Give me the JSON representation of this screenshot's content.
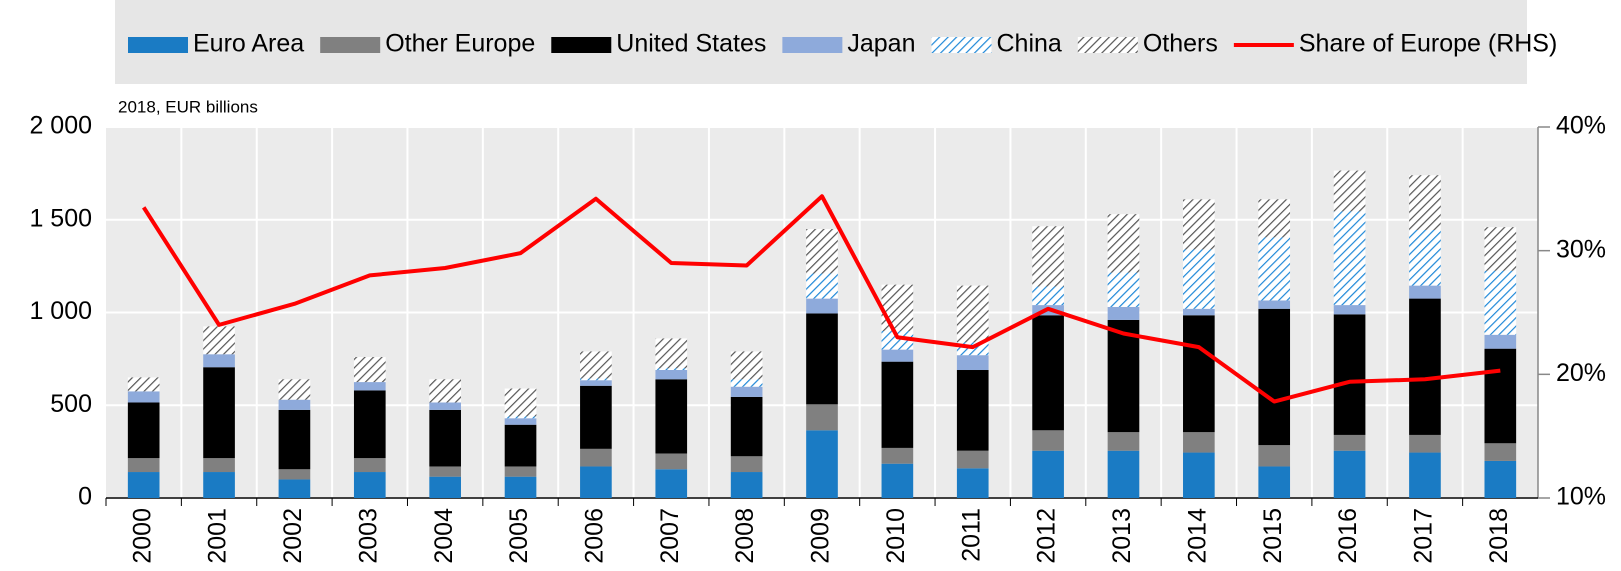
{
  "chart_data": {
    "type": "bar",
    "stacked": true,
    "subtitle": "2018, EUR billions",
    "categories": [
      "2000",
      "2001",
      "2002",
      "2003",
      "2004",
      "2005",
      "2006",
      "2007",
      "2008",
      "2009",
      "2010",
      "2011",
      "2012",
      "2013",
      "2014",
      "2015",
      "2016",
      "2017",
      "2018"
    ],
    "series": [
      {
        "name": "Euro Area",
        "color": "#1a7bc4",
        "values": [
          140,
          140,
          100,
          140,
          115,
          115,
          170,
          155,
          140,
          365,
          185,
          160,
          255,
          255,
          245,
          170,
          255,
          245,
          200
        ]
      },
      {
        "name": "Other Europe",
        "color": "#808080",
        "values": [
          75,
          75,
          55,
          75,
          55,
          55,
          95,
          85,
          85,
          140,
          85,
          95,
          110,
          100,
          110,
          115,
          85,
          95,
          95
        ]
      },
      {
        "name": "United States",
        "color": "#000000",
        "values": [
          300,
          490,
          320,
          365,
          305,
          225,
          340,
          400,
          320,
          490,
          465,
          435,
          620,
          605,
          630,
          735,
          650,
          735,
          510
        ]
      },
      {
        "name": "Japan",
        "color": "#8eaadb",
        "values": [
          60,
          70,
          55,
          45,
          40,
          35,
          30,
          50,
          55,
          80,
          65,
          80,
          55,
          70,
          35,
          45,
          50,
          70,
          75
        ]
      },
      {
        "name": "China",
        "color": "#1e88d8",
        "pattern": "hatch",
        "values": [
          0,
          0,
          0,
          0,
          0,
          10,
          10,
          10,
          40,
          135,
          100,
          70,
          100,
          185,
          320,
          340,
          505,
          300,
          345
        ]
      },
      {
        "name": "Others",
        "color": "#555555",
        "pattern": "hatch",
        "values": [
          75,
          150,
          110,
          135,
          125,
          150,
          145,
          160,
          150,
          240,
          250,
          305,
          325,
          315,
          270,
          205,
          220,
          295,
          235
        ]
      },
      {
        "name": "Share of Europe (RHS)",
        "color": "#ff0000",
        "type": "line",
        "axis": "y2",
        "values": [
          33.5,
          24,
          25.7,
          28,
          28.6,
          29.8,
          34.2,
          29,
          28.8,
          34.4,
          23,
          22.2,
          25.3,
          23.3,
          22.2,
          17.8,
          19.4,
          19.6,
          20.3
        ]
      }
    ],
    "ylim": [
      0,
      2000
    ],
    "yticks": [
      0,
      500,
      {
        "value": 1000,
        "label": "1 000"
      },
      {
        "value": 1500,
        "label": "1 500"
      },
      {
        "value": 2000,
        "label": "2 000"
      }
    ],
    "y2lim": [
      10,
      40
    ],
    "y2ticks": [
      {
        "value": 10,
        "label": "10%"
      },
      {
        "value": 20,
        "label": "20%"
      },
      {
        "value": 30,
        "label": "30%"
      },
      {
        "value": 40,
        "label": "40%"
      }
    ],
    "grid": true,
    "legend": "top"
  }
}
